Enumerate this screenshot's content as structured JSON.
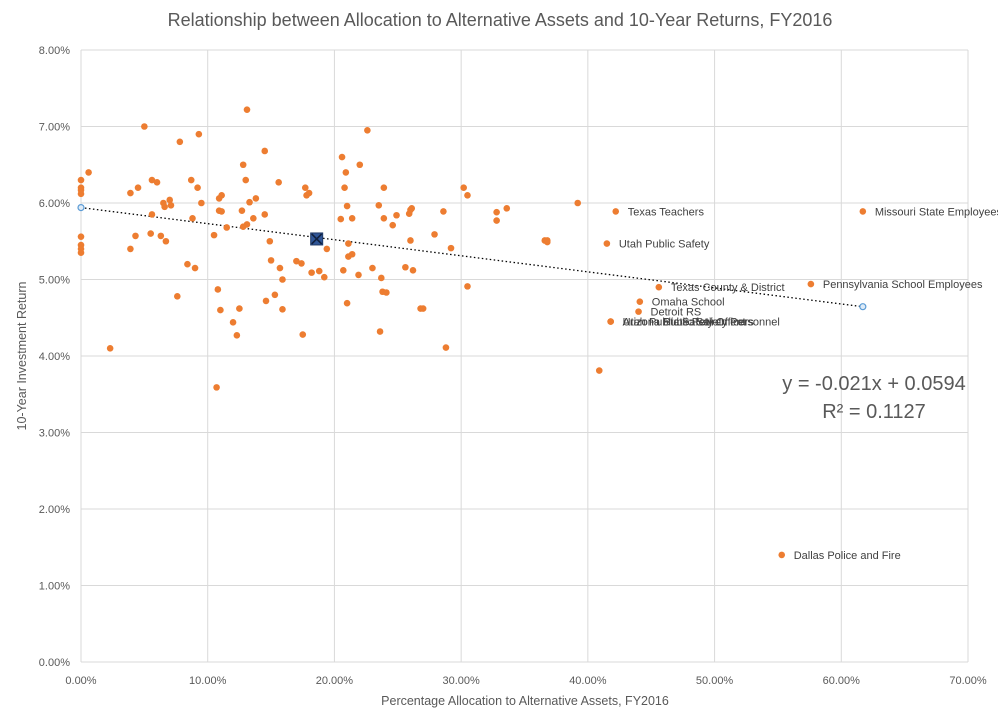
{
  "chart_data": {
    "type": "scatter",
    "title": "Relationship between Allocation to Alternative Assets and 10-Year Returns, FY2016",
    "xlabel": "Percentage Allocation to Alternative Assets, FY2016",
    "ylabel": "10-Year Investment Return",
    "xlim": [
      0,
      0.7
    ],
    "ylim": [
      0,
      0.08
    ],
    "x_ticks": [
      0,
      0.1,
      0.2,
      0.3,
      0.4,
      0.5,
      0.6,
      0.7
    ],
    "x_tick_labels": [
      "0.00%",
      "10.00%",
      "20.00%",
      "30.00%",
      "40.00%",
      "50.00%",
      "60.00%",
      "70.00%"
    ],
    "y_ticks": [
      0,
      0.01,
      0.02,
      0.03,
      0.04,
      0.05,
      0.06,
      0.07,
      0.08
    ],
    "y_tick_labels": [
      "0.00%",
      "1.00%",
      "2.00%",
      "3.00%",
      "4.00%",
      "5.00%",
      "6.00%",
      "7.00%",
      "8.00%"
    ],
    "grid": true,
    "colors": {
      "points": "#ED7D31",
      "average_marker": "#2F5597",
      "trendline": "#000000",
      "endpoint": "#5B9BD5",
      "grid": "#D9D9D9",
      "text": "#595959"
    },
    "series": [
      {
        "points": [
          [
            0.0,
            0.063
          ],
          [
            0.0,
            0.062
          ],
          [
            0.0,
            0.0617
          ],
          [
            0.0,
            0.0612
          ],
          [
            0.0,
            0.0556
          ],
          [
            0.0,
            0.0545
          ],
          [
            0.0,
            0.054
          ],
          [
            0.0,
            0.0535
          ],
          [
            0.006,
            0.064
          ],
          [
            0.023,
            0.041
          ],
          [
            0.039,
            0.054
          ],
          [
            0.039,
            0.0613
          ],
          [
            0.043,
            0.0557
          ],
          [
            0.045,
            0.062
          ],
          [
            0.05,
            0.07
          ],
          [
            0.055,
            0.056
          ],
          [
            0.056,
            0.0585
          ],
          [
            0.056,
            0.063
          ],
          [
            0.06,
            0.0627
          ],
          [
            0.063,
            0.0557
          ],
          [
            0.065,
            0.06
          ],
          [
            0.066,
            0.0595
          ],
          [
            0.067,
            0.055
          ],
          [
            0.07,
            0.0604
          ],
          [
            0.071,
            0.0597
          ],
          [
            0.076,
            0.0478
          ],
          [
            0.078,
            0.068
          ],
          [
            0.084,
            0.052
          ],
          [
            0.087,
            0.063
          ],
          [
            0.088,
            0.058
          ],
          [
            0.09,
            0.0515
          ],
          [
            0.092,
            0.062
          ],
          [
            0.093,
            0.069
          ],
          [
            0.095,
            0.06
          ],
          [
            0.105,
            0.0558
          ],
          [
            0.107,
            0.0359
          ],
          [
            0.108,
            0.0487
          ],
          [
            0.109,
            0.0606
          ],
          [
            0.109,
            0.059
          ],
          [
            0.11,
            0.046
          ],
          [
            0.111,
            0.061
          ],
          [
            0.111,
            0.0589
          ],
          [
            0.115,
            0.0568
          ],
          [
            0.12,
            0.0444
          ],
          [
            0.123,
            0.0427
          ],
          [
            0.125,
            0.0462
          ],
          [
            0.127,
            0.059
          ],
          [
            0.128,
            0.065
          ],
          [
            0.128,
            0.0569
          ],
          [
            0.13,
            0.063
          ],
          [
            0.131,
            0.0722
          ],
          [
            0.131,
            0.0572
          ],
          [
            0.133,
            0.0601
          ],
          [
            0.136,
            0.058
          ],
          [
            0.138,
            0.0606
          ],
          [
            0.145,
            0.0668
          ],
          [
            0.145,
            0.0585
          ],
          [
            0.146,
            0.0472
          ],
          [
            0.149,
            0.055
          ],
          [
            0.15,
            0.0525
          ],
          [
            0.153,
            0.048
          ],
          [
            0.156,
            0.0627
          ],
          [
            0.157,
            0.0515
          ],
          [
            0.159,
            0.05
          ],
          [
            0.159,
            0.0461
          ],
          [
            0.17,
            0.0524
          ],
          [
            0.174,
            0.0521
          ],
          [
            0.175,
            0.0428
          ],
          [
            0.177,
            0.062
          ],
          [
            0.178,
            0.061
          ],
          [
            0.18,
            0.0613
          ],
          [
            0.182,
            0.0509
          ],
          [
            0.188,
            0.0511
          ],
          [
            0.192,
            0.0503
          ],
          [
            0.194,
            0.054
          ],
          [
            0.205,
            0.0579
          ],
          [
            0.206,
            0.066
          ],
          [
            0.207,
            0.0512
          ],
          [
            0.208,
            0.062
          ],
          [
            0.209,
            0.064
          ],
          [
            0.21,
            0.0469
          ],
          [
            0.21,
            0.0596
          ],
          [
            0.211,
            0.0547
          ],
          [
            0.211,
            0.053
          ],
          [
            0.214,
            0.0533
          ],
          [
            0.214,
            0.058
          ],
          [
            0.219,
            0.0506
          ],
          [
            0.22,
            0.065
          ],
          [
            0.226,
            0.0695
          ],
          [
            0.23,
            0.0515
          ],
          [
            0.235,
            0.0597
          ],
          [
            0.236,
            0.0432
          ],
          [
            0.237,
            0.0502
          ],
          [
            0.238,
            0.0484
          ],
          [
            0.239,
            0.058
          ],
          [
            0.239,
            0.062
          ],
          [
            0.241,
            0.0483
          ],
          [
            0.246,
            0.0571
          ],
          [
            0.249,
            0.0584
          ],
          [
            0.256,
            0.0516
          ],
          [
            0.259,
            0.0586
          ],
          [
            0.26,
            0.0591
          ],
          [
            0.26,
            0.0551
          ],
          [
            0.261,
            0.0593
          ],
          [
            0.262,
            0.0512
          ],
          [
            0.268,
            0.0462
          ],
          [
            0.27,
            0.0462
          ],
          [
            0.279,
            0.0559
          ],
          [
            0.286,
            0.0589
          ],
          [
            0.288,
            0.0411
          ],
          [
            0.292,
            0.0541
          ],
          [
            0.302,
            0.062
          ],
          [
            0.305,
            0.061
          ],
          [
            0.305,
            0.0491
          ],
          [
            0.328,
            0.0588
          ],
          [
            0.328,
            0.0577
          ],
          [
            0.336,
            0.0593
          ],
          [
            0.366,
            0.0551
          ],
          [
            0.368,
            0.0549
          ],
          [
            0.368,
            0.0551
          ],
          [
            0.392,
            0.06
          ],
          [
            0.409,
            0.0381
          ],
          [
            0.422,
            0.0589
          ],
          [
            0.415,
            0.0547
          ],
          [
            0.456,
            0.049
          ],
          [
            0.441,
            0.0471
          ],
          [
            0.44,
            0.0458
          ],
          [
            0.418,
            0.0445
          ],
          [
            0.418,
            0.0445
          ],
          [
            0.553,
            0.014
          ],
          [
            0.576,
            0.0494
          ],
          [
            0.617,
            0.0589
          ]
        ]
      }
    ],
    "labeled_points": [
      {
        "label": "Texas Teachers",
        "x": 0.422,
        "y": 0.0589
      },
      {
        "label": "Utah Public Safety",
        "x": 0.415,
        "y": 0.0547
      },
      {
        "label": "Texas County & District",
        "x": 0.456,
        "y": 0.049
      },
      {
        "label": "Omaha School",
        "x": 0.441,
        "y": 0.0471
      },
      {
        "label": "Detroit RS",
        "x": 0.44,
        "y": 0.0458
      },
      {
        "label": "Arizona State Retirement",
        "x": 0.418,
        "y": 0.0445
      },
      {
        "label": "Arizona Public Safety Personnel",
        "x": 0.418,
        "y": 0.0445
      },
      {
        "label": "Utah Public Safety Officers",
        "x": 0.418,
        "y": 0.0445
      },
      {
        "label": "Dallas Police and Fire",
        "x": 0.553,
        "y": 0.014
      },
      {
        "label": "Pennsylvania School Employees",
        "x": 0.576,
        "y": 0.0494
      },
      {
        "label": "Missouri State Employees",
        "x": 0.617,
        "y": 0.0589
      }
    ],
    "average_point": {
      "x": 0.186,
      "y": 0.0553
    },
    "trendline": {
      "slope": -0.021,
      "intercept": 0.0594,
      "x_range": [
        0,
        0.617
      ],
      "equation": "y = -0.021x + 0.0594",
      "r_squared": "R² = 0.1127"
    }
  }
}
